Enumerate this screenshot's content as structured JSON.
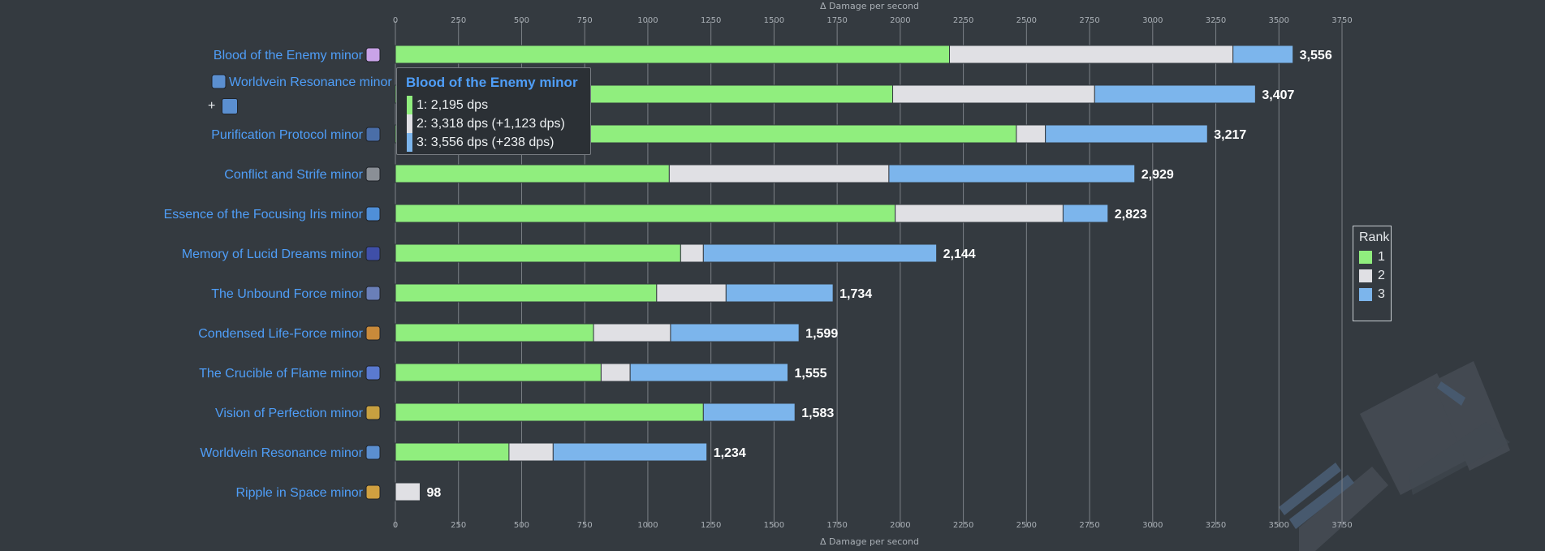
{
  "chart_data": {
    "type": "bar",
    "orientation": "horizontal",
    "stacked": true,
    "xlabel": "Δ Damage per second",
    "xlim": [
      0,
      3750
    ],
    "xticks": [
      "0",
      "250",
      "500",
      "750",
      "1000",
      "1250",
      "1500",
      "1750",
      "2000",
      "2250",
      "2500",
      "2750",
      "3000",
      "3250",
      "3500",
      "3750"
    ],
    "grid": true,
    "legend_position": "right",
    "legend_title": "Rank",
    "categories": [
      "Blood of the Enemy minor",
      "Worldvein Resonance minor",
      "Purification Protocol minor",
      "Conflict and Strife minor",
      "Essence of the Focusing Iris minor",
      "Memory of Lucid Dreams minor",
      "The Unbound Force minor",
      "Condensed Life-Force minor",
      "The Crucible of Flame minor",
      "Vision of Perfection minor",
      "Worldvein Resonance minor",
      "Ripple in Space minor"
    ],
    "series": [
      {
        "name": "1",
        "color": "#90ee7e",
        "values": [
          2195,
          1970,
          2460,
          1085,
          1980,
          1130,
          1035,
          785,
          815,
          1220,
          450,
          0
        ]
      },
      {
        "name": "2",
        "color": "#e0e0e4",
        "values": [
          1123,
          800,
          115,
          870,
          665,
          90,
          275,
          305,
          115,
          0,
          175,
          98
        ]
      },
      {
        "name": "3",
        "color": "#7cb5ec",
        "values": [
          238,
          637,
          642,
          974,
          178,
          924,
          424,
          509,
          625,
          363,
          609,
          0
        ]
      }
    ],
    "totals": [
      "3,556",
      "3,407",
      "3,217",
      "2,929",
      "2,823",
      "2,144",
      "1,734",
      "1,599",
      "1,555",
      "1,583",
      "1,234",
      "98"
    ],
    "extra_label": "+",
    "icon_colors": [
      "#c9a3e8",
      "#5b8fd0",
      "#4a6ea8",
      "#8a8f96",
      "#4f8fd8",
      "#3f4fa8",
      "#6a7fb8",
      "#c98a3a",
      "#5a7ad0",
      "#c7a040",
      "#5b8fd0",
      "#d0a040"
    ],
    "tooltip": {
      "title": "Blood of the Enemy minor",
      "rows": [
        {
          "text": "1:  2,195 dps",
          "color": "#90ee7e"
        },
        {
          "text": "2:  3,318 dps (+1,123 dps)",
          "color": "#e0e0e4"
        },
        {
          "text": "3:  3,556 dps (+238 dps)",
          "color": "#7cb5ec"
        }
      ]
    }
  }
}
